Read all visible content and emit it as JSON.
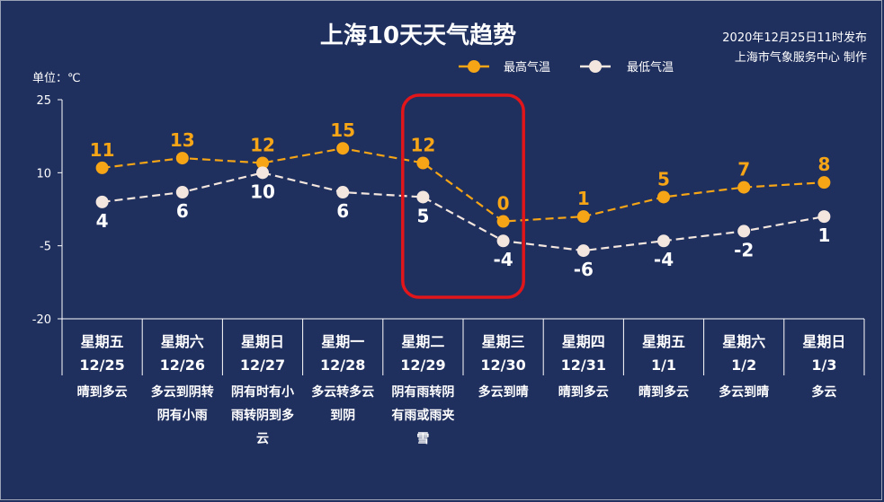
{
  "title": "上海10天天气趋势",
  "publish": "2020年12月25日11时发布",
  "source": "上海市气象服务中心 制作",
  "unit_label": "单位：℃",
  "legend": {
    "high": "最高气温",
    "low": "最低气温"
  },
  "colors": {
    "background": "#1f2f5e",
    "high": "#f5a516",
    "low": "#f3e6de",
    "highlight": "#e0161b"
  },
  "chart_data": {
    "type": "line",
    "ylim": [
      -20,
      25
    ],
    "yticks": [
      25,
      10,
      -5,
      -20
    ],
    "days": [
      {
        "weekday": "星期五",
        "date": "12/25",
        "desc": [
          "晴到多云"
        ]
      },
      {
        "weekday": "星期六",
        "date": "12/26",
        "desc": [
          "多云到阴转",
          "阴有小雨"
        ]
      },
      {
        "weekday": "星期日",
        "date": "12/27",
        "desc": [
          "阴有时有小",
          "雨转阴到多",
          "云"
        ]
      },
      {
        "weekday": "星期一",
        "date": "12/28",
        "desc": [
          "多云转多云",
          "到阴"
        ]
      },
      {
        "weekday": "星期二",
        "date": "12/29",
        "desc": [
          "阴有雨转阴",
          "有雨或雨夹",
          "雪"
        ]
      },
      {
        "weekday": "星期三",
        "date": "12/30",
        "desc": [
          "多云到晴"
        ]
      },
      {
        "weekday": "星期四",
        "date": "12/31",
        "desc": [
          "晴到多云"
        ]
      },
      {
        "weekday": "星期五",
        "date": "1/1",
        "desc": [
          "晴到多云"
        ]
      },
      {
        "weekday": "星期六",
        "date": "1/2",
        "desc": [
          "多云到晴"
        ]
      },
      {
        "weekday": "星期日",
        "date": "1/3",
        "desc": [
          "多云"
        ]
      }
    ],
    "series": [
      {
        "name": "最高气温",
        "values": [
          11,
          13,
          12,
          15,
          12,
          0,
          1,
          5,
          7,
          8
        ]
      },
      {
        "name": "最低气温",
        "values": [
          4,
          6,
          10,
          6,
          5,
          -4,
          -6,
          -4,
          -2,
          1
        ]
      }
    ],
    "point_labels": {
      "high": [
        "11",
        "13",
        "12",
        "15",
        "12",
        "0",
        "1",
        "5",
        "7",
        "8"
      ],
      "low": [
        "4",
        "6",
        "10",
        "6",
        "5",
        "-4",
        "-6",
        "-4",
        "-2",
        "1"
      ]
    },
    "highlight_range": [
      "12/29",
      "12/30"
    ]
  }
}
